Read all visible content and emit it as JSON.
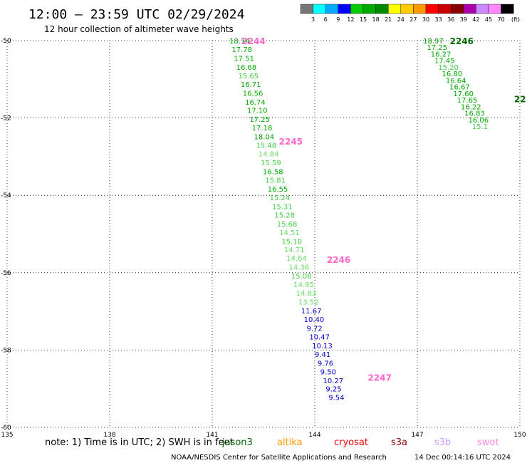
{
  "header": {
    "title": "12:00 – 23:59 UTC 02/29/2024",
    "subtitle": "12 hour collection of altimeter wave heights"
  },
  "colorbar": {
    "unit": "(ft)",
    "colors": [
      "#777777",
      "#00ffff",
      "#00aaff",
      "#0000ff",
      "#00cc00",
      "#00aa00",
      "#008800",
      "#ffff00",
      "#ffcc00",
      "#ff9900",
      "#ff0000",
      "#cc0000",
      "#880000",
      "#aa00aa",
      "#cc88ff",
      "#ff88ff",
      "#000000"
    ],
    "labels": [
      "3",
      "6",
      "9",
      "12",
      "15",
      "18",
      "21",
      "24",
      "27",
      "30",
      "33",
      "36",
      "39",
      "42",
      "45",
      "70"
    ]
  },
  "chart_data": {
    "type": "scatter",
    "xlim": [
      135,
      150
    ],
    "ylim": [
      -60,
      -50
    ],
    "x_ticks": [
      135,
      138,
      141,
      144,
      147,
      150
    ],
    "y_ticks": [
      -50,
      -52,
      -54,
      -56,
      -58,
      -60
    ],
    "x_tick_labels": [
      "135",
      "138",
      "141",
      "144",
      "147",
      "150"
    ],
    "y_tick_labels": [
      "-50",
      "-52",
      "-54",
      "-56",
      "-58",
      "-60"
    ],
    "grid": true,
    "series": [
      {
        "name": "jason3",
        "points": [
          {
            "lon": 141.5,
            "lat": -50.0,
            "swh": "18.14"
          },
          {
            "lon": 141.57,
            "lat": -50.22,
            "swh": "17.78"
          },
          {
            "lon": 141.63,
            "lat": -50.45,
            "swh": "17.51"
          },
          {
            "lon": 141.7,
            "lat": -50.68,
            "swh": "16.68"
          },
          {
            "lon": 141.76,
            "lat": -50.9,
            "swh": "15.65"
          },
          {
            "lon": 141.83,
            "lat": -51.12,
            "swh": "16.71"
          },
          {
            "lon": 141.89,
            "lat": -51.35,
            "swh": "16.56"
          },
          {
            "lon": 141.96,
            "lat": -51.58,
            "swh": "16.74"
          },
          {
            "lon": 142.02,
            "lat": -51.8,
            "swh": "17.10"
          },
          {
            "lon": 142.09,
            "lat": -52.03,
            "swh": "17.25"
          },
          {
            "lon": 142.16,
            "lat": -52.25,
            "swh": "17.18"
          },
          {
            "lon": 142.22,
            "lat": -52.48,
            "swh": "18.04"
          },
          {
            "lon": 142.28,
            "lat": -52.7,
            "swh": "15.48"
          },
          {
            "lon": 142.35,
            "lat": -52.92,
            "swh": "14.84"
          },
          {
            "lon": 142.42,
            "lat": -53.15,
            "swh": "15.59"
          },
          {
            "lon": 142.48,
            "lat": -53.38,
            "swh": "16.58"
          },
          {
            "lon": 142.55,
            "lat": -53.6,
            "swh": "15.81"
          },
          {
            "lon": 142.62,
            "lat": -53.83,
            "swh": "16.55"
          },
          {
            "lon": 142.68,
            "lat": -54.05,
            "swh": "15.24"
          },
          {
            "lon": 142.75,
            "lat": -54.28,
            "swh": "15.31"
          },
          {
            "lon": 142.82,
            "lat": -54.5,
            "swh": "15.28"
          },
          {
            "lon": 142.89,
            "lat": -54.73,
            "swh": "15.68"
          },
          {
            "lon": 142.96,
            "lat": -54.95,
            "swh": "14.51"
          },
          {
            "lon": 143.03,
            "lat": -55.18,
            "swh": "15.10"
          },
          {
            "lon": 143.1,
            "lat": -55.4,
            "swh": "14.71"
          },
          {
            "lon": 143.17,
            "lat": -55.62,
            "swh": "14.64"
          },
          {
            "lon": 143.24,
            "lat": -55.85,
            "swh": "14.36"
          },
          {
            "lon": 143.31,
            "lat": -56.08,
            "swh": "15.08"
          },
          {
            "lon": 143.38,
            "lat": -56.3,
            "swh": "14.95"
          },
          {
            "lon": 143.45,
            "lat": -56.52,
            "swh": "14.83"
          },
          {
            "lon": 143.52,
            "lat": -56.75,
            "swh": "13.52"
          },
          {
            "lon": 143.6,
            "lat": -56.98,
            "swh": "11.67"
          },
          {
            "lon": 143.68,
            "lat": -57.2,
            "swh": "10.40"
          },
          {
            "lon": 143.76,
            "lat": -57.43,
            "swh": "9.72"
          },
          {
            "lon": 143.84,
            "lat": -57.65,
            "swh": "10.47"
          },
          {
            "lon": 143.92,
            "lat": -57.88,
            "swh": "10.13"
          },
          {
            "lon": 144.0,
            "lat": -58.1,
            "swh": "9.41"
          },
          {
            "lon": 144.08,
            "lat": -58.33,
            "swh": "9.76"
          },
          {
            "lon": 144.16,
            "lat": -58.55,
            "swh": "9.50"
          },
          {
            "lon": 144.24,
            "lat": -58.78,
            "swh": "10.27"
          },
          {
            "lon": 144.32,
            "lat": -59.0,
            "swh": "9.25"
          },
          {
            "lon": 144.4,
            "lat": -59.22,
            "swh": "9.54"
          }
        ]
      },
      {
        "name": "jason3-east",
        "points": [
          {
            "lon": 147.17,
            "lat": -50.0,
            "swh": "18.97"
          },
          {
            "lon": 147.28,
            "lat": -50.17,
            "swh": "17.25"
          },
          {
            "lon": 147.39,
            "lat": -50.34,
            "swh": "16.27"
          },
          {
            "lon": 147.5,
            "lat": -50.51,
            "swh": "17.45"
          },
          {
            "lon": 147.61,
            "lat": -50.68,
            "swh": "15.20"
          },
          {
            "lon": 147.72,
            "lat": -50.85,
            "swh": "16.80"
          },
          {
            "lon": 147.83,
            "lat": -51.02,
            "swh": "16.64"
          },
          {
            "lon": 147.94,
            "lat": -51.19,
            "swh": "16.67"
          },
          {
            "lon": 148.05,
            "lat": -51.36,
            "swh": "17.60"
          },
          {
            "lon": 148.16,
            "lat": -51.53,
            "swh": "17.65"
          },
          {
            "lon": 148.27,
            "lat": -51.7,
            "swh": "16.22"
          },
          {
            "lon": 148.38,
            "lat": -51.87,
            "swh": "16.83"
          },
          {
            "lon": 148.49,
            "lat": -52.04,
            "swh": "16.06"
          },
          {
            "lon": 148.6,
            "lat": -52.21,
            "swh": "15.1"
          }
        ]
      }
    ],
    "pass_labels": [
      {
        "text": "2244",
        "lon": 141.86,
        "lat": -50.0,
        "color": "#ff66cc"
      },
      {
        "text": "2245",
        "lon": 142.95,
        "lat": -52.6,
        "color": "#ff66cc"
      },
      {
        "text": "2246",
        "lon": 144.35,
        "lat": -55.65,
        "color": "#ff66cc"
      },
      {
        "text": "2247",
        "lon": 145.55,
        "lat": -58.7,
        "color": "#ff66cc"
      },
      {
        "text": "2246",
        "lon": 147.95,
        "lat": -50.0,
        "color": "#006600"
      },
      {
        "text": "22",
        "lon": 149.83,
        "lat": -51.5,
        "color": "#006600"
      }
    ]
  },
  "note": "note: 1) Time is in UTC; 2) SWH is in feet",
  "satellites": [
    {
      "name": "jason3",
      "color": "#006600"
    },
    {
      "name": "altika",
      "color": "#ff9900"
    },
    {
      "name": "cryosat",
      "color": "#ee0000"
    },
    {
      "name": "s3a",
      "color": "#880000"
    },
    {
      "name": "s3b",
      "color": "#cc99ff"
    },
    {
      "name": "swot",
      "color": "#ff88dd"
    }
  ],
  "footer": {
    "credit": "NOAA/NESDIS Center for Satellite Applications and Research",
    "timestamp": "14 Dec 00:14:16 UTC 2024"
  }
}
